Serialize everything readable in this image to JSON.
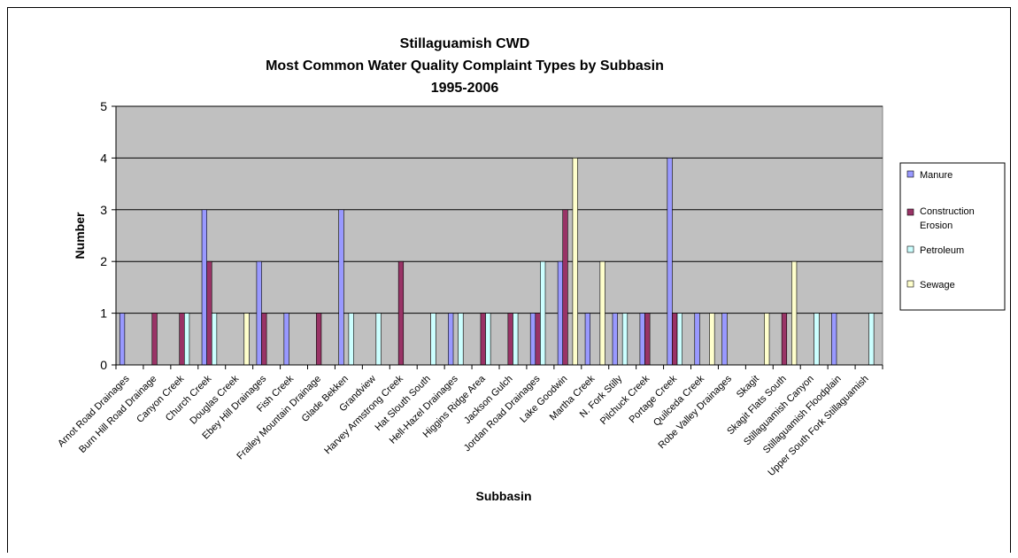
{
  "chart_data": {
    "type": "bar",
    "title_lines": [
      "Stillaguamish CWD",
      "Most Common Water Quality Complaint Types by Subbasin",
      "1995-2006"
    ],
    "xlabel": "Subbasin",
    "ylabel": "Number",
    "ylim": [
      0,
      5
    ],
    "yticks": [
      "0",
      "1",
      "2",
      "3",
      "4",
      "5"
    ],
    "grid": true,
    "legend_position": "right",
    "categories": [
      "Arnot Road Drainages",
      "Burn Hill Road Drainage",
      "Canyon Creek",
      "Church Creek",
      "Douglas Creek",
      "Ebey Hill Drainages",
      "Fish Creek",
      "Frailey Mountain Drainage",
      "Glade Bekken",
      "Grandview",
      "Harvey Armstrong Creek",
      "Hat Slouth South",
      "Hell-Hazel Drainages",
      "Higgins Ridge Area",
      "Jackson Gulch",
      "Jordan Road Drainages",
      "Lake Goodwin",
      "Martha Creek",
      "N. Fork Stilly",
      "Pilchuck Creek",
      "Portage Creek",
      "Quilceda Creek",
      "Robe Valley Drainages",
      "Skagit",
      "Skagit Flats South",
      "Stillaguamish Canyon",
      "Stillaguamish Floodplain",
      "Upper South Fork Stillaguamish"
    ],
    "series": [
      {
        "name": "Manure",
        "color": "#9999ff",
        "values": [
          1,
          0,
          0,
          3,
          0,
          2,
          1,
          0,
          3,
          0,
          0,
          0,
          1,
          0,
          0,
          1,
          2,
          1,
          1,
          1,
          4,
          1,
          1,
          0,
          0,
          0,
          1,
          0
        ]
      },
      {
        "name": "Construction Erosion",
        "color": "#993366",
        "values": [
          0,
          1,
          1,
          2,
          0,
          1,
          0,
          1,
          0,
          0,
          2,
          0,
          0,
          1,
          1,
          1,
          3,
          0,
          0,
          1,
          1,
          0,
          0,
          0,
          1,
          0,
          0,
          0
        ]
      },
      {
        "name": "Petroleum",
        "color": "#ccffff",
        "values": [
          0,
          0,
          1,
          1,
          0,
          0,
          0,
          0,
          1,
          1,
          0,
          1,
          1,
          1,
          1,
          2,
          0,
          0,
          1,
          0,
          1,
          0,
          0,
          0,
          0,
          1,
          0,
          1
        ]
      },
      {
        "name": "Sewage",
        "color": "#ffffcc",
        "values": [
          0,
          0,
          0,
          0,
          1,
          0,
          0,
          0,
          0,
          0,
          0,
          0,
          0,
          0,
          0,
          0,
          4,
          2,
          0,
          0,
          0,
          1,
          0,
          1,
          2,
          0,
          0,
          0
        ]
      }
    ]
  }
}
